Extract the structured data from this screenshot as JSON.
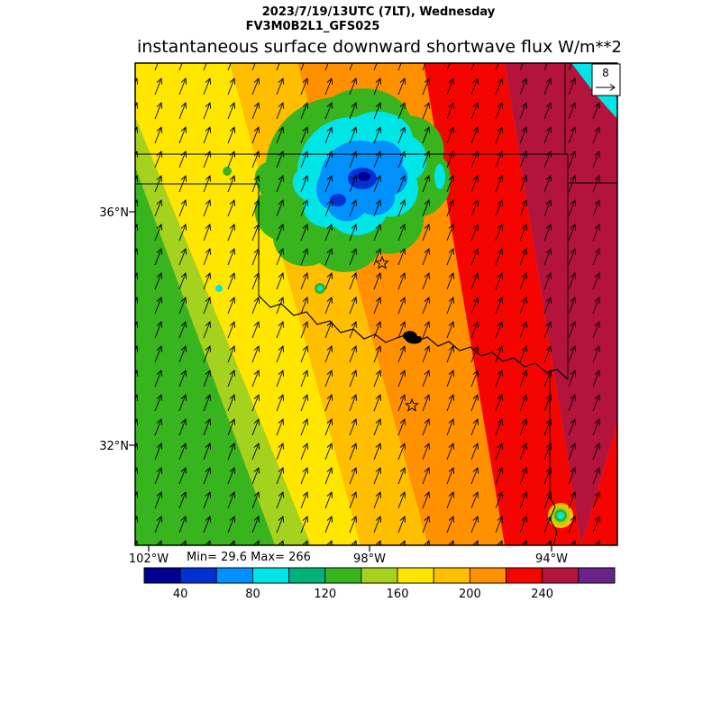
{
  "header": {
    "datetime": "2023/7/19/13UTC (7LT), Wednesday",
    "model": "FV3M0B2L1_GFS025"
  },
  "title": {
    "text": "instantaneous surface downward shortwave flux",
    "units": "W/m**2"
  },
  "map": {
    "stats": "Min= 29.6 Max= 266",
    "reference_vector": "8",
    "lat_ticks": [
      "36°N",
      "32°N"
    ],
    "lon_ticks": [
      "102°W",
      "98°W",
      "94°W"
    ]
  },
  "chart_data": {
    "type": "heatmap",
    "title": "instantaneous surface downward shortwave flux",
    "units": "W/m**2",
    "valid_time": "2023/7/19/13UTC (7LT), Wednesday",
    "model_run": "FV3M0B2L1_GFS025",
    "min": 29.6,
    "max": 266,
    "x_ticks": [
      "102°W",
      "98°W",
      "94°W"
    ],
    "y_ticks": [
      "36°N",
      "32°N"
    ],
    "wind_reference_vector": 8,
    "gradient_note": "Shortwave flux increases from ~100-120 W/m**2 in the southwest (green/yellow bands) to ~240-266 W/m**2 in the east (red/dark-red bands); a low-flux cloudy region (20-100 W/m**2, blue/cyan) covers north-central Oklahoma; uniform southerly wind vectors overlaid.",
    "colorbar": {
      "levels": [
        20,
        40,
        60,
        80,
        100,
        120,
        140,
        160,
        180,
        200,
        220,
        240,
        260,
        280
      ],
      "colors": [
        "#000091",
        "#0032D2",
        "#0091FF",
        "#00E6E6",
        "#00B478",
        "#37B41E",
        "#A5D21E",
        "#FFE600",
        "#FFBE00",
        "#FF9100",
        "#F50500",
        "#B4143C",
        "#69238C"
      ],
      "tick_labels": [
        "40",
        "80",
        "120",
        "160",
        "200",
        "240"
      ],
      "tick_indices": [
        1,
        3,
        5,
        7,
        9,
        11
      ]
    }
  }
}
